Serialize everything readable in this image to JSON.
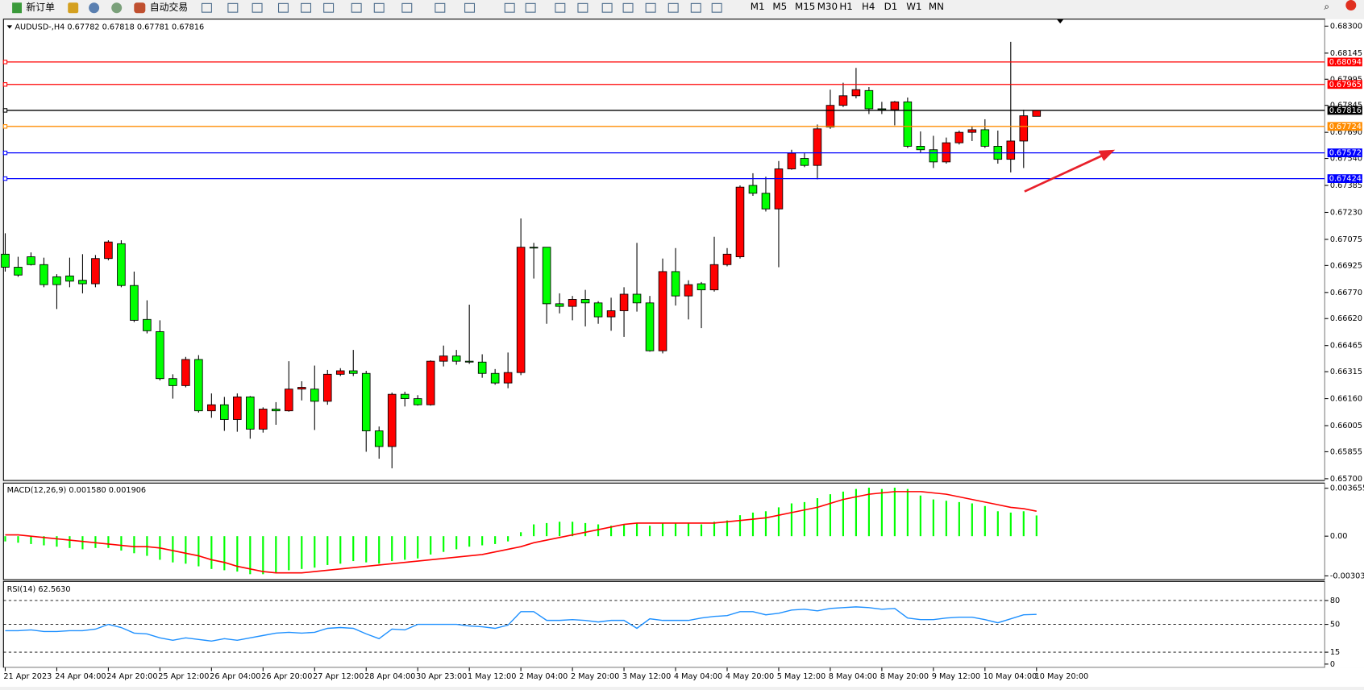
{
  "toolbar": {
    "new_order": "新订单",
    "auto_trading": "自动交易",
    "periods": [
      "M1",
      "M5",
      "M15",
      "M30",
      "H1",
      "H4",
      "D1",
      "W1",
      "MN"
    ]
  },
  "chart_data": [
    {
      "type": "candlestick",
      "title": "AUDUSD-,H4 0.67782 0.67818 0.67781 0.67816",
      "up_color": "#ff0000",
      "down_color": "#00ff00",
      "categories": [
        "21 Apr 2023",
        null,
        null,
        null,
        "24 Apr 04:00",
        null,
        null,
        null,
        "24 Apr 20:00",
        null,
        null,
        null,
        "25 Apr 12:00",
        null,
        null,
        null,
        "26 Apr 04:00",
        null,
        null,
        null,
        "26 Apr 20:00",
        null,
        null,
        null,
        "27 Apr 12:00",
        null,
        null,
        null,
        "28 Apr 04:00",
        null,
        null,
        null,
        "30 Apr 23:00",
        null,
        null,
        null,
        "1 May 12:00",
        null,
        null,
        null,
        "2 May 04:00",
        null,
        null,
        null,
        "2 May 20:00",
        null,
        null,
        null,
        "3 May 12:00",
        null,
        null,
        null,
        "4 May 04:00",
        null,
        null,
        null,
        "4 May 20:00",
        null,
        null,
        null,
        "5 May 12:00",
        null,
        null,
        null,
        "8 May 04:00",
        null,
        null,
        null,
        "8 May 20:00",
        null,
        null,
        null,
        "9 May 12:00",
        null,
        null,
        null,
        "10 May 04:00",
        null,
        null,
        null,
        "10 May 20:00"
      ],
      "open": [
        0.6699,
        0.66915,
        0.66975,
        0.6693,
        0.6686,
        0.66865,
        0.6684,
        0.6682,
        0.66965,
        0.6705,
        0.6681,
        0.66615,
        0.66545,
        0.66275,
        0.66235,
        0.66385,
        0.6609,
        0.66125,
        0.6604,
        0.6617,
        0.65985,
        0.661,
        0.6609,
        0.66215,
        0.66215,
        0.66145,
        0.663,
        0.6632,
        0.66305,
        0.65975,
        0.65885,
        0.66185,
        0.6616,
        0.66125,
        0.66375,
        0.66405,
        0.66375,
        0.6637,
        0.66305,
        0.6625,
        0.6631,
        0.6703,
        0.6703,
        0.66705,
        0.6669,
        0.6673,
        0.6671,
        0.6663,
        0.66665,
        0.6676,
        0.6671,
        0.66435,
        0.6689,
        0.6675,
        0.6682,
        0.66785,
        0.6693,
        0.66975,
        0.67385,
        0.6734,
        0.6725,
        0.6748,
        0.6754,
        0.675,
        0.6772,
        0.67845,
        0.679,
        0.6793,
        0.67825,
        0.6782,
        0.67865,
        0.6761,
        0.6759,
        0.6752,
        0.6763,
        0.6769,
        0.67705,
        0.6761,
        0.67535,
        0.6764,
        0.67782
      ],
      "high": [
        0.6711,
        0.66975,
        0.67,
        0.6697,
        0.66875,
        0.6697,
        0.6699,
        0.66985,
        0.6707,
        0.6707,
        0.6689,
        0.66725,
        0.6661,
        0.663,
        0.664,
        0.6641,
        0.6619,
        0.6617,
        0.6619,
        0.66175,
        0.6611,
        0.6614,
        0.66375,
        0.6626,
        0.6635,
        0.66325,
        0.66335,
        0.6644,
        0.6632,
        0.66,
        0.66195,
        0.662,
        0.6618,
        0.6638,
        0.66465,
        0.6644,
        0.667,
        0.66415,
        0.6633,
        0.66425,
        0.67195,
        0.67055,
        0.6703,
        0.66765,
        0.6675,
        0.66785,
        0.6672,
        0.6674,
        0.668,
        0.67055,
        0.6675,
        0.66965,
        0.67025,
        0.6684,
        0.6683,
        0.6709,
        0.67025,
        0.67385,
        0.67455,
        0.67435,
        0.67525,
        0.6759,
        0.6757,
        0.67735,
        0.67935,
        0.67975,
        0.6806,
        0.6795,
        0.67865,
        0.6787,
        0.6789,
        0.67695,
        0.6767,
        0.6766,
        0.677,
        0.67725,
        0.67765,
        0.677,
        0.6821,
        0.6782,
        0.67818
      ],
      "low": [
        0.6689,
        0.6686,
        0.66925,
        0.668,
        0.66675,
        0.668,
        0.66765,
        0.668,
        0.66955,
        0.668,
        0.666,
        0.66535,
        0.66265,
        0.6616,
        0.66225,
        0.6608,
        0.6605,
        0.65975,
        0.6597,
        0.6593,
        0.65965,
        0.6601,
        0.66085,
        0.6615,
        0.6598,
        0.66125,
        0.6629,
        0.6629,
        0.65855,
        0.65815,
        0.6576,
        0.66115,
        0.6612,
        0.6612,
        0.66345,
        0.66355,
        0.6636,
        0.6628,
        0.6624,
        0.6622,
        0.66295,
        0.6685,
        0.6659,
        0.6665,
        0.6661,
        0.66575,
        0.6659,
        0.6655,
        0.66515,
        0.6666,
        0.6643,
        0.6642,
        0.66695,
        0.66615,
        0.66565,
        0.66775,
        0.6692,
        0.66965,
        0.67325,
        0.67235,
        0.66915,
        0.67475,
        0.6749,
        0.6742,
        0.6771,
        0.67835,
        0.67885,
        0.67795,
        0.67795,
        0.6773,
        0.676,
        0.67575,
        0.67485,
        0.6751,
        0.6762,
        0.6764,
        0.676,
        0.6751,
        0.6746,
        0.67485,
        0.67781
      ],
      "close": [
        0.66915,
        0.6687,
        0.6693,
        0.66815,
        0.66815,
        0.66835,
        0.6682,
        0.66965,
        0.6706,
        0.6681,
        0.6661,
        0.6655,
        0.66275,
        0.66235,
        0.66385,
        0.6609,
        0.66125,
        0.6604,
        0.6617,
        0.65985,
        0.661,
        0.6609,
        0.66215,
        0.66225,
        0.66145,
        0.663,
        0.6632,
        0.66305,
        0.65975,
        0.65885,
        0.66185,
        0.6616,
        0.66125,
        0.66375,
        0.66405,
        0.66375,
        0.6637,
        0.66305,
        0.6625,
        0.6631,
        0.6703,
        0.67025,
        0.66705,
        0.6669,
        0.6673,
        0.6671,
        0.6663,
        0.66665,
        0.6676,
        0.6671,
        0.66435,
        0.6689,
        0.6675,
        0.66815,
        0.66785,
        0.6693,
        0.6699,
        0.67375,
        0.6734,
        0.6725,
        0.6748,
        0.6757,
        0.675,
        0.6771,
        0.67845,
        0.679,
        0.67935,
        0.67825,
        0.6782,
        0.67865,
        0.6761,
        0.6759,
        0.6752,
        0.6763,
        0.6769,
        0.67705,
        0.6761,
        0.67535,
        0.6764,
        0.67785,
        0.67816
      ],
      "ylim": [
        0.6569,
        0.6834
      ],
      "yticks": [
        {
          "value": 0.683,
          "label": "0.68300"
        },
        {
          "value": 0.68145,
          "label": "0.68145"
        },
        {
          "value": 0.67995,
          "label": "0.67995"
        },
        {
          "value": 0.67845,
          "label": "0.67845"
        },
        {
          "value": 0.6769,
          "label": "0.67690"
        },
        {
          "value": 0.6754,
          "label": "0.67540"
        },
        {
          "value": 0.67385,
          "label": "0.67385"
        },
        {
          "value": 0.6723,
          "label": "0.67230"
        },
        {
          "value": 0.67075,
          "label": "0.67075"
        },
        {
          "value": 0.66925,
          "label": "0.66925"
        },
        {
          "value": 0.6677,
          "label": "0.66770"
        },
        {
          "value": 0.6662,
          "label": "0.66620"
        },
        {
          "value": 0.66465,
          "label": "0.66465"
        },
        {
          "value": 0.66315,
          "label": "0.66315"
        },
        {
          "value": 0.6616,
          "label": "0.66160"
        },
        {
          "value": 0.66005,
          "label": "0.66005"
        },
        {
          "value": 0.65855,
          "label": "0.65855"
        },
        {
          "value": 0.657,
          "label": "0.65700"
        }
      ],
      "levels": [
        {
          "value": 0.68094,
          "label": "0.68094",
          "color": "#ff0000"
        },
        {
          "value": 0.67965,
          "label": "0.67965",
          "color": "#ff0000"
        },
        {
          "value": 0.67816,
          "label": "0.67816",
          "color": "#000000"
        },
        {
          "value": 0.67724,
          "label": "0.67724",
          "color": "#ff8c00"
        },
        {
          "value": 0.67572,
          "label": "0.67572",
          "color": "#0000ff"
        },
        {
          "value": 0.67424,
          "label": "0.67424",
          "color": "#0000ff"
        }
      ]
    },
    {
      "type": "macd",
      "title": "MACD(12,26,9) 0.001580 0.001906",
      "histogram": {
        "color": "#00ff00",
        "values": [
          -0.0004,
          -0.0005,
          -0.0006,
          -0.0007,
          -0.0008,
          -0.0009,
          -0.001,
          -0.0009,
          -0.0009,
          -0.0011,
          -0.0013,
          -0.0015,
          -0.0018,
          -0.002,
          -0.0021,
          -0.0023,
          -0.0025,
          -0.0026,
          -0.0027,
          -0.0029,
          -0.0029,
          -0.0028,
          -0.0026,
          -0.0025,
          -0.0024,
          -0.0022,
          -0.0021,
          -0.0019,
          -0.002,
          -0.0021,
          -0.0019,
          -0.0018,
          -0.0017,
          -0.0014,
          -0.0012,
          -0.001,
          -0.0008,
          -0.0007,
          -0.0006,
          -0.0004,
          0.0003,
          0.0009,
          0.001,
          0.0011,
          0.0011,
          0.001,
          0.0009,
          0.0008,
          0.0009,
          0.001,
          0.0008,
          0.001,
          0.001,
          0.001,
          0.0009,
          0.0011,
          0.0012,
          0.0016,
          0.0018,
          0.0019,
          0.0022,
          0.0025,
          0.0026,
          0.0029,
          0.0032,
          0.0034,
          0.0036,
          0.0037,
          0.0036,
          0.0037,
          0.0036,
          0.0031,
          0.0028,
          0.0027,
          0.0026,
          0.0025,
          0.0023,
          0.0019,
          0.0018,
          0.0019,
          0.00158
        ]
      },
      "signal": {
        "color": "#ff0000",
        "values": [
          0.0001,
          0.0001,
          0.0,
          -0.0001,
          -0.0002,
          -0.0003,
          -0.0004,
          -0.0005,
          -0.0006,
          -0.0007,
          -0.0008,
          -0.0008,
          -0.0009,
          -0.0011,
          -0.0013,
          -0.0015,
          -0.0018,
          -0.002,
          -0.0023,
          -0.0025,
          -0.0027,
          -0.0028,
          -0.0028,
          -0.0028,
          -0.0027,
          -0.0026,
          -0.0025,
          -0.0024,
          -0.0023,
          -0.0022,
          -0.0021,
          -0.002,
          -0.0019,
          -0.0018,
          -0.0017,
          -0.0016,
          -0.0015,
          -0.0014,
          -0.0012,
          -0.001,
          -0.0008,
          -0.0005,
          -0.0003,
          -0.0001,
          0.0001,
          0.0003,
          0.0005,
          0.0007,
          0.0009,
          0.001,
          0.001,
          0.001,
          0.001,
          0.001,
          0.001,
          0.001,
          0.0011,
          0.0012,
          0.0013,
          0.0014,
          0.0016,
          0.0018,
          0.002,
          0.0022,
          0.0025,
          0.0028,
          0.003,
          0.0032,
          0.0033,
          0.0034,
          0.0034,
          0.0034,
          0.0033,
          0.0032,
          0.003,
          0.0028,
          0.0026,
          0.0024,
          0.0022,
          0.0021,
          0.001906
        ]
      },
      "ylim": [
        -0.00332,
        0.00405
      ],
      "yticks": [
        0.003655,
        {
          "value": 0,
          "label": "0.00"
        },
        -0.00303
      ]
    },
    {
      "type": "line",
      "title": "RSI(14) 62.5630",
      "color": "#1e90ff",
      "values": [
        42,
        42,
        43,
        41,
        41,
        42,
        42,
        44,
        50,
        46,
        39,
        38,
        33,
        30,
        33,
        31,
        29,
        32,
        30,
        33,
        36,
        39,
        40,
        39,
        40,
        45,
        46,
        45,
        38,
        32,
        44,
        43,
        50,
        50,
        50,
        50,
        48,
        47,
        45,
        49,
        66,
        66,
        55,
        55,
        56,
        55,
        53,
        55,
        55,
        45,
        57,
        55,
        55,
        55,
        58,
        60,
        61,
        66,
        66,
        62,
        64,
        68,
        69,
        67,
        70,
        71,
        72,
        71,
        69,
        70,
        58,
        56,
        56,
        58,
        59,
        59,
        56,
        52,
        57,
        62,
        62.563
      ],
      "ylim": [
        -4.4,
        104
      ],
      "yticks": [
        80,
        50,
        15,
        0
      ],
      "levels": [
        80,
        50,
        15
      ]
    }
  ]
}
